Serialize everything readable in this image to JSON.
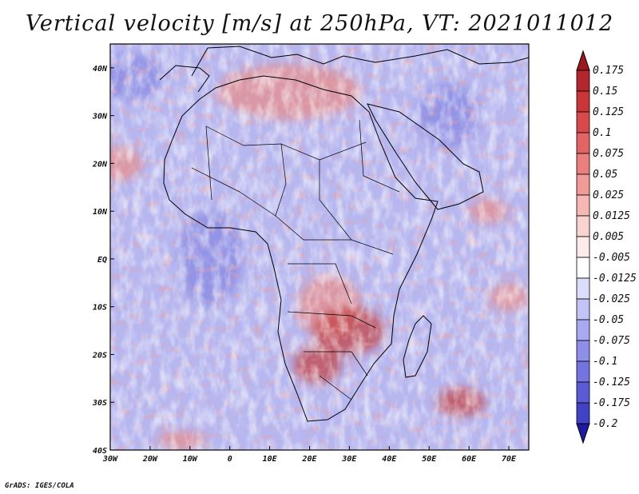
{
  "title": "Vertical velocity [m/s] at 250hPa, VT: 2021011012",
  "credit": "GrADS: IGES/COLA",
  "map": {
    "lon_range": [
      -30,
      75
    ],
    "lat_range": [
      -40,
      45
    ],
    "lon_ticks": [
      {
        "value": -30,
        "label": "30W"
      },
      {
        "value": -20,
        "label": "20W"
      },
      {
        "value": -10,
        "label": "10W"
      },
      {
        "value": 0,
        "label": "0"
      },
      {
        "value": 10,
        "label": "10E"
      },
      {
        "value": 20,
        "label": "20E"
      },
      {
        "value": 30,
        "label": "30E"
      },
      {
        "value": 40,
        "label": "40E"
      },
      {
        "value": 50,
        "label": "50E"
      },
      {
        "value": 60,
        "label": "60E"
      },
      {
        "value": 70,
        "label": "70E"
      }
    ],
    "lat_ticks": [
      {
        "value": 40,
        "label": "40N"
      },
      {
        "value": 30,
        "label": "30N"
      },
      {
        "value": 20,
        "label": "20N"
      },
      {
        "value": 10,
        "label": "10N"
      },
      {
        "value": 0,
        "label": "EQ"
      },
      {
        "value": -10,
        "label": "10S"
      },
      {
        "value": -20,
        "label": "20S"
      },
      {
        "value": -30,
        "label": "30S"
      },
      {
        "value": -40,
        "label": "40S"
      }
    ]
  },
  "colorbar": {
    "levels": [
      {
        "label": "0.175",
        "color": "#b3262b"
      },
      {
        "label": "0.15",
        "color": "#c83638"
      },
      {
        "label": "0.125",
        "color": "#d84a4a"
      },
      {
        "label": "0.1",
        "color": "#e26464"
      },
      {
        "label": "0.075",
        "color": "#ea7f7d"
      },
      {
        "label": "0.05",
        "color": "#f09b98"
      },
      {
        "label": "0.025",
        "color": "#f5b8b4"
      },
      {
        "label": "0.0125",
        "color": "#f9d3d0"
      },
      {
        "label": "0.005",
        "color": "#fcebea"
      },
      {
        "label": "-0.005",
        "color": "#ffffff"
      },
      {
        "label": "-0.0125",
        "color": "#dcdcfb"
      },
      {
        "label": "-0.025",
        "color": "#c3c3f6"
      },
      {
        "label": "-0.05",
        "color": "#a9a9f0"
      },
      {
        "label": "-0.075",
        "color": "#8f8fea"
      },
      {
        "label": "-0.1",
        "color": "#7474e0"
      },
      {
        "label": "-0.125",
        "color": "#5b5bd5"
      },
      {
        "label": "-0.175",
        "color": "#4242c6"
      },
      {
        "label": "-0.2",
        "color": "#2a28ad"
      }
    ],
    "top_arrow_color": "#9a1a20",
    "bottom_arrow_color": "#1e1aa0"
  },
  "field_colors": {
    "ocean_base": "#b7b7f0",
    "updraft": "#e88a86",
    "strong_updraft": "#c23d3d",
    "downdraft": "#8585e2",
    "coast": "#000000"
  }
}
